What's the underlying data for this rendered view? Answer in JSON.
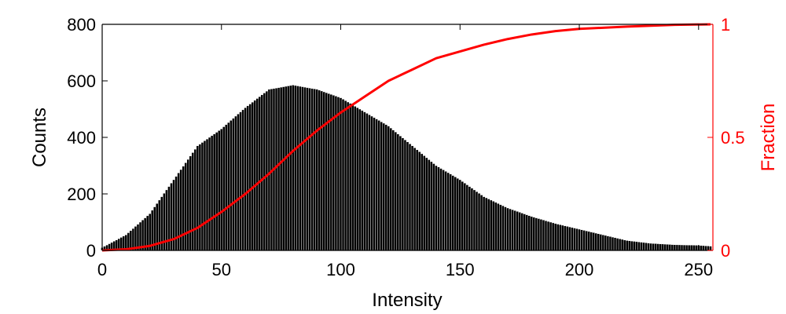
{
  "chart_data": {
    "type": "bar",
    "xlabel": "Intensity",
    "ylabel": "Counts",
    "y2label": "Fraction",
    "xlim": [
      0,
      256
    ],
    "ylim": [
      0,
      800
    ],
    "y2lim": [
      0,
      1
    ],
    "xticks": [
      "0",
      "50",
      "100",
      "150",
      "200",
      "250"
    ],
    "xtick_values": [
      0,
      50,
      100,
      150,
      200,
      250
    ],
    "yticks": [
      "0",
      "200",
      "400",
      "600",
      "800"
    ],
    "ytick_values": [
      0,
      200,
      400,
      600,
      800
    ],
    "y2ticks": [
      "0",
      "0.5",
      "1"
    ],
    "y2tick_values": [
      0,
      0.5,
      1
    ],
    "grid": false,
    "legend": "none",
    "colors": {
      "bars": "#000000",
      "bar_edge": "#ffffff",
      "cdf": "#ff0000",
      "axis": "#000000"
    },
    "series": [
      {
        "kind": "bar",
        "x": [
          0,
          10,
          20,
          30,
          40,
          50,
          60,
          70,
          80,
          90,
          100,
          110,
          120,
          130,
          140,
          150,
          160,
          170,
          180,
          190,
          200,
          210,
          220,
          230,
          240,
          250,
          255
        ],
        "values": [
          10,
          55,
          130,
          250,
          370,
          430,
          505,
          570,
          585,
          570,
          540,
          490,
          440,
          370,
          300,
          250,
          190,
          150,
          120,
          95,
          75,
          55,
          35,
          25,
          20,
          18,
          15
        ]
      },
      {
        "kind": "line",
        "axis": "right",
        "x": [
          0,
          10,
          20,
          30,
          40,
          50,
          60,
          70,
          80,
          90,
          100,
          110,
          120,
          130,
          140,
          150,
          160,
          170,
          180,
          190,
          200,
          220,
          240,
          255
        ],
        "values": [
          0,
          0.005,
          0.02,
          0.05,
          0.1,
          0.17,
          0.25,
          0.34,
          0.44,
          0.53,
          0.61,
          0.68,
          0.75,
          0.8,
          0.85,
          0.88,
          0.91,
          0.935,
          0.955,
          0.97,
          0.98,
          0.99,
          0.998,
          1
        ]
      }
    ]
  }
}
